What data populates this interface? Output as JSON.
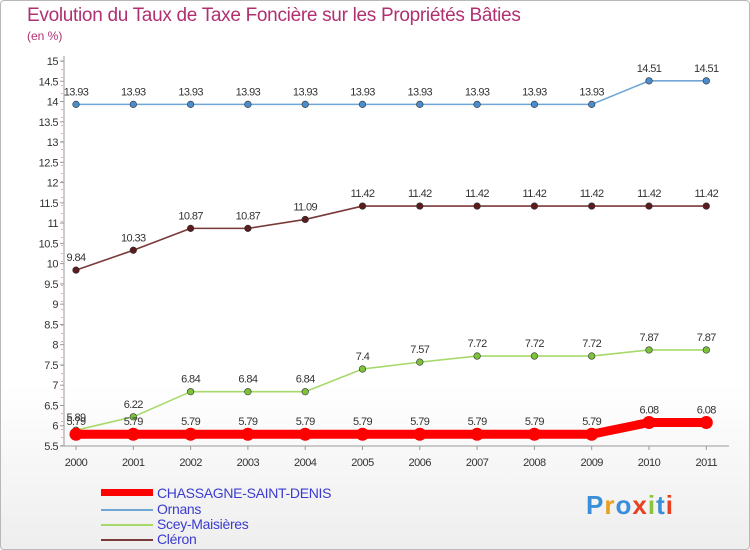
{
  "title": "Evolution du Taux de Taxe Foncière sur les Propriétés Bâties",
  "unit": "(en %)",
  "logo": [
    "P",
    "r",
    "o",
    "x",
    "i",
    "t",
    "i"
  ],
  "logo_colors": [
    "#3a8fd8",
    "#e8a020",
    "#3a8fd8",
    "#e84020",
    "#8bc43a",
    "#3a8fd8",
    "#e84020"
  ],
  "chart_data": {
    "type": "line",
    "title": "Evolution du Taux de Taxe Foncière sur les Propriétés Bâties",
    "ylabel": "(en %)",
    "xlabel": "",
    "x": [
      "2000",
      "2001",
      "2002",
      "2003",
      "2004",
      "2005",
      "2006",
      "2007",
      "2008",
      "2009",
      "2010",
      "2011"
    ],
    "ylim": [
      5.5,
      15
    ],
    "yticks": [
      "5.5",
      "6",
      "6.5",
      "7",
      "7.5",
      "8",
      "8.5",
      "9",
      "9.5",
      "10",
      "10.5",
      "11",
      "11.5",
      "12",
      "12.5",
      "13",
      "13.5",
      "14",
      "14.5",
      "15"
    ],
    "grid": false,
    "series": [
      {
        "name": "Ornans",
        "color": "#6fa6d6",
        "marker": "#4a8ccc",
        "values": [
          13.93,
          13.93,
          13.93,
          13.93,
          13.93,
          13.93,
          13.93,
          13.93,
          13.93,
          13.93,
          14.51,
          14.51
        ],
        "labels": [
          "13.93",
          "13.93",
          "13.93",
          "13.93",
          "13.93",
          "13.93",
          "13.93",
          "13.93",
          "13.93",
          "13.93",
          "14.51",
          "14.51"
        ]
      },
      {
        "name": "Cléron",
        "color": "#7a3a3a",
        "marker": "#5a1c1c",
        "values": [
          9.84,
          10.33,
          10.87,
          10.87,
          11.09,
          11.42,
          11.42,
          11.42,
          11.42,
          11.42,
          11.42,
          11.42
        ],
        "labels": [
          "9.84",
          "10.33",
          "10.87",
          "10.87",
          "11.09",
          "11.42",
          "11.42",
          "11.42",
          "11.42",
          "11.42",
          "11.42",
          "11.42"
        ]
      },
      {
        "name": "Scey-Maisières",
        "color": "#a6d96a",
        "marker": "#7cc23a",
        "values": [
          5.89,
          6.22,
          6.84,
          6.84,
          6.84,
          7.4,
          7.57,
          7.72,
          7.72,
          7.72,
          7.87,
          7.87
        ],
        "labels": [
          "5.89",
          "6.22",
          "6.84",
          "6.84",
          "6.84",
          "7.4",
          "7.57",
          "7.72",
          "7.72",
          "7.72",
          "7.87",
          "7.87"
        ]
      },
      {
        "name": "CHASSAGNE-SAINT-DENIS",
        "color": "#ff0000",
        "marker": "#ff0000",
        "values": [
          5.79,
          5.79,
          5.79,
          5.79,
          5.79,
          5.79,
          5.79,
          5.79,
          5.79,
          5.79,
          6.08,
          6.08
        ],
        "labels": [
          "5.79",
          "5.79",
          "5.79",
          "5.79",
          "5.79",
          "5.79",
          "5.79",
          "5.79",
          "5.79",
          "5.79",
          "6.08",
          "6.08"
        ]
      }
    ],
    "legend": [
      "CHASSAGNE-SAINT-DENIS",
      "Ornans",
      "Scey-Maisières",
      "Cléron"
    ]
  }
}
